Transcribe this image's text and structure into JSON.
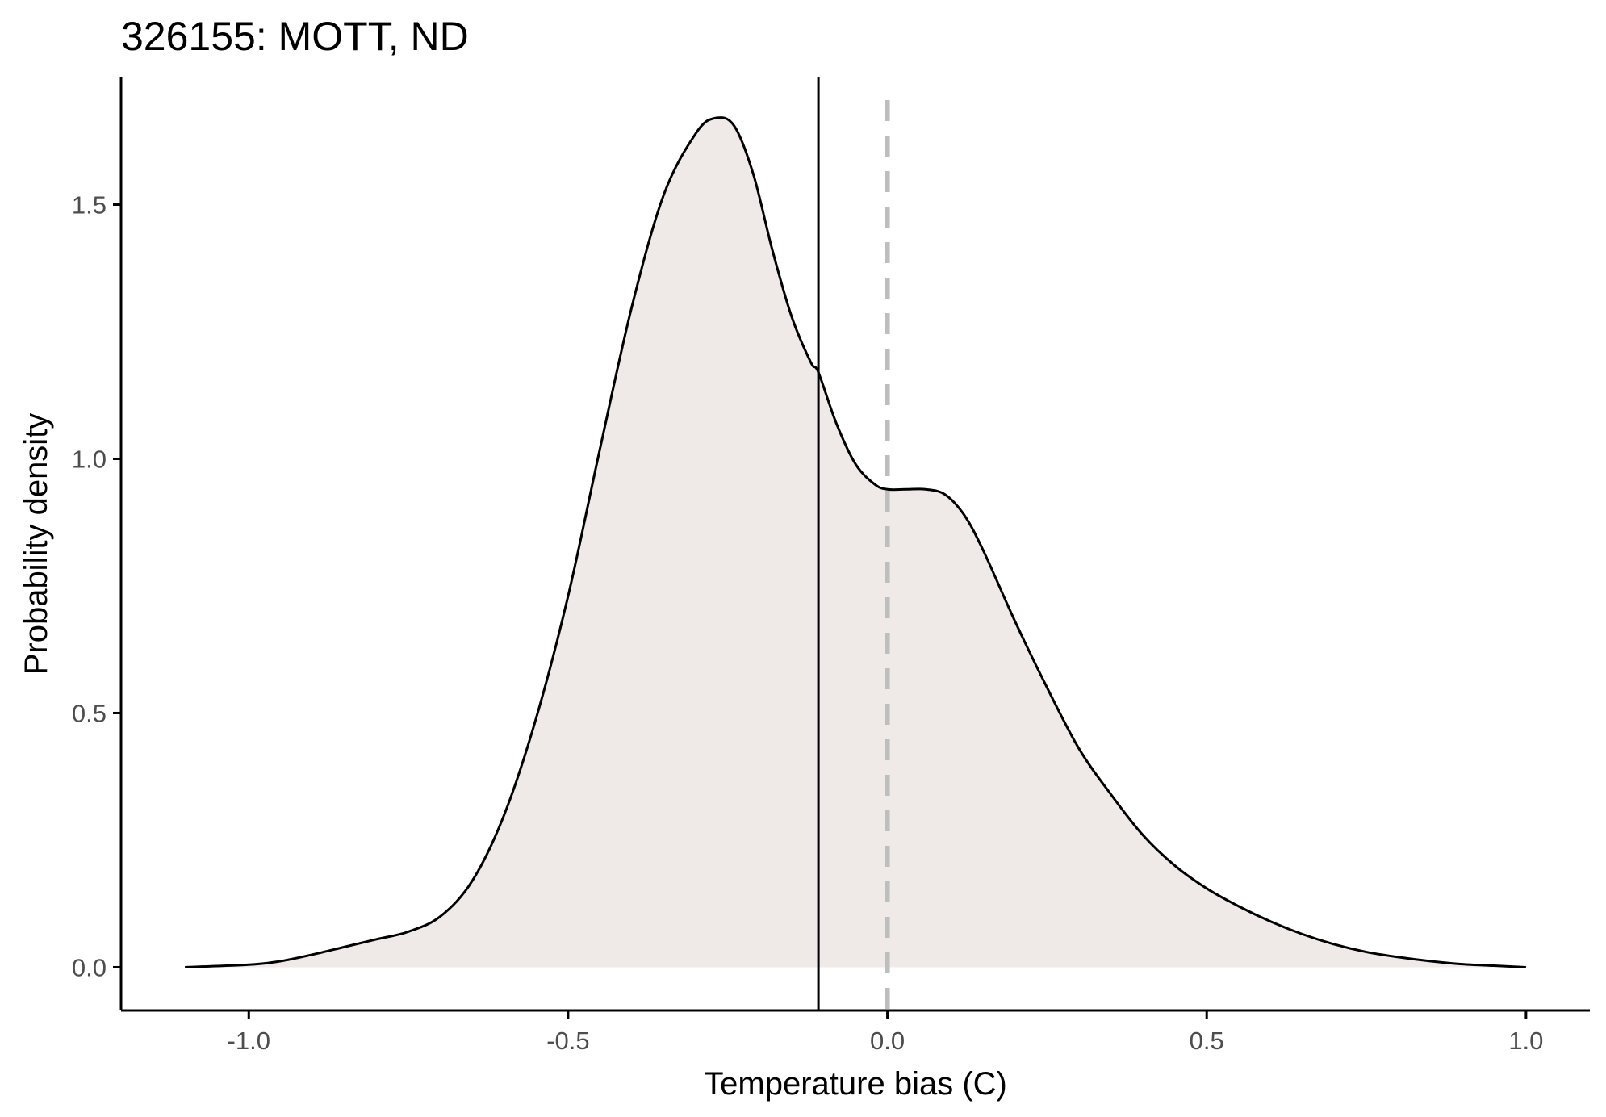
{
  "chart_data": {
    "type": "area",
    "title": "326155: MOTT, ND",
    "xlabel": "Temperature bias (C)",
    "ylabel": "Probability density",
    "xlim": [
      -1.2,
      1.1
    ],
    "ylim": [
      -0.085,
      1.75
    ],
    "x_ticks": [
      -1.0,
      -0.5,
      0.0,
      0.5,
      1.0
    ],
    "x_tick_labels": [
      "-1.0",
      "-0.5",
      "0.0",
      "0.5",
      "1.0"
    ],
    "y_ticks": [
      0.0,
      0.5,
      1.0,
      1.5
    ],
    "y_tick_labels": [
      "0.0",
      "0.5",
      "1.0",
      "1.5"
    ],
    "grid": false,
    "fill_color": "#efe9e7",
    "line_color": "#000000",
    "series": [
      {
        "x": [
          -1.1,
          -1.0,
          -0.95,
          -0.9,
          -0.85,
          -0.8,
          -0.75,
          -0.7,
          -0.65,
          -0.6,
          -0.55,
          -0.5,
          -0.45,
          -0.4,
          -0.35,
          -0.3,
          -0.27,
          -0.24,
          -0.21,
          -0.18,
          -0.15,
          -0.12,
          -0.108,
          -0.08,
          -0.05,
          -0.02,
          0.0,
          0.03,
          0.06,
          0.09,
          0.12,
          0.15,
          0.2,
          0.25,
          0.3,
          0.35,
          0.4,
          0.45,
          0.5,
          0.55,
          0.6,
          0.65,
          0.7,
          0.75,
          0.8,
          0.85,
          0.9,
          0.95,
          1.0
        ],
        "y": [
          0.0,
          0.005,
          0.012,
          0.025,
          0.04,
          0.055,
          0.07,
          0.1,
          0.17,
          0.3,
          0.49,
          0.73,
          1.02,
          1.3,
          1.52,
          1.64,
          1.67,
          1.655,
          1.56,
          1.41,
          1.28,
          1.19,
          1.17,
          1.07,
          0.99,
          0.95,
          0.94,
          0.94,
          0.94,
          0.93,
          0.89,
          0.82,
          0.68,
          0.55,
          0.43,
          0.34,
          0.26,
          0.2,
          0.155,
          0.12,
          0.09,
          0.065,
          0.045,
          0.03,
          0.02,
          0.012,
          0.006,
          0.003,
          0.0
        ]
      }
    ],
    "reference_lines": [
      {
        "x": -0.108,
        "style": "solid",
        "color": "#000000"
      },
      {
        "x": 0.0,
        "style": "dashed",
        "color": "#bebebe"
      }
    ]
  }
}
